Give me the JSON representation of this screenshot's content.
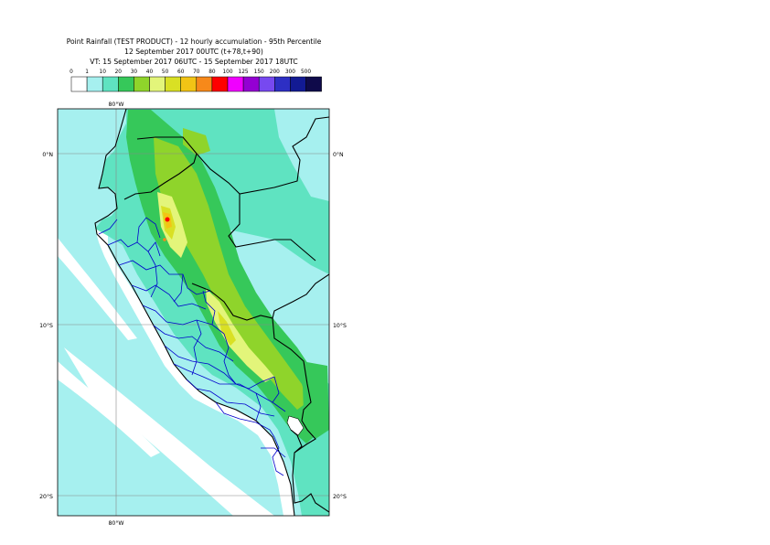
{
  "title": {
    "line1": "Point Rainfall (TEST PRODUCT) - 12 hourly accumulation - 95th Percentile",
    "line2": "12 September 2017 00UTC (t+78,t+90)",
    "line3": "VT: 15 September 2017 06UTC - 15 September 2017 18UTC"
  },
  "legend": {
    "ticks": [
      "0",
      "1",
      "10",
      "20",
      "30",
      "40",
      "50",
      "60",
      "70",
      "80",
      "100",
      "125",
      "150",
      "200",
      "300",
      "500"
    ],
    "colors": [
      "#ffffff",
      "#a6f0ef",
      "#5fe3c1",
      "#36c85a",
      "#8fd42b",
      "#e3f57a",
      "#d9e024",
      "#f2c415",
      "#f7891a",
      "#fe0000",
      "#f000ff",
      "#9400d3",
      "#7749f0",
      "#2d2fc4",
      "#121a93",
      "#0f0a4a"
    ]
  },
  "axes": {
    "lon_label_top": "80°W",
    "lon_label_bottom": "80°W",
    "lat_labels_left": [
      "0°N",
      "10°S",
      "20°S"
    ],
    "lat_labels_right": [
      "0°N",
      "10°S",
      "20°S"
    ]
  },
  "colors": {
    "sea": "#a6f0ef",
    "land_base": "#5fe3c1",
    "coast_white": "#ffffff",
    "border_country": "#000000",
    "border_region": "#0000cc",
    "grid": "#888888"
  }
}
